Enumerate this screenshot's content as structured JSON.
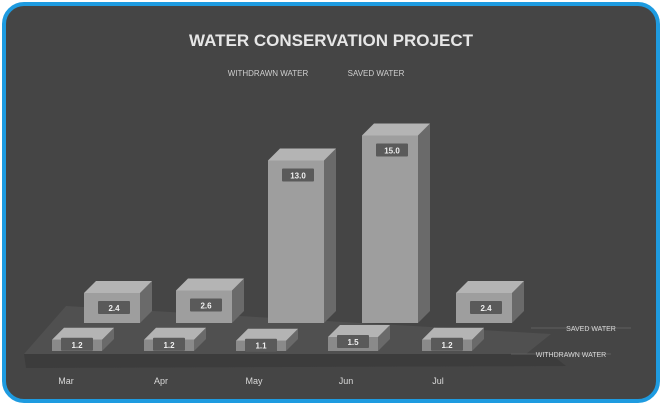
{
  "chart_data": {
    "type": "bar",
    "title": "WATER CONSERVATION PROJECT",
    "legend": {
      "position": "top-center",
      "entries": [
        "WITHDRAWN WATER",
        "SAVED WATER"
      ]
    },
    "categories": [
      "Mar",
      "Apr",
      "May",
      "Jun",
      "Jul"
    ],
    "series": [
      {
        "name": "WITHDRAWN WATER",
        "values": [
          1.2,
          1.2,
          1.1,
          1.5,
          1.2
        ]
      },
      {
        "name": "SAVED WATER",
        "values": [
          2.4,
          2.6,
          13.0,
          15.0,
          2.4
        ]
      }
    ],
    "value_labels": {
      "front": [
        "1.2",
        "1.2",
        "1.1",
        "1.5",
        "1.2"
      ],
      "back": [
        "2.4",
        "2.6",
        "13.0",
        "15.0",
        "2.4"
      ]
    },
    "ylim": [
      0,
      16
    ],
    "grid": false,
    "colors": {
      "background": "#454545",
      "border": "#1e9be0",
      "front_bar": "#8a8a8a",
      "back_bar": "#9e9e9e",
      "text": "#d9d9d9"
    }
  }
}
